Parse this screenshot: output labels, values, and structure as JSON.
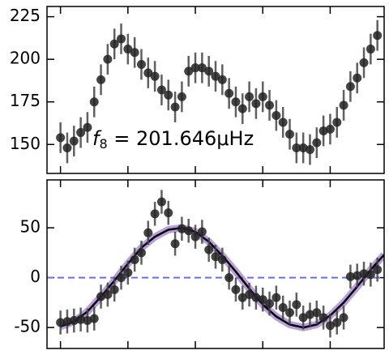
{
  "chart_data": [
    {
      "type": "scatter",
      "x": [
        0,
        1,
        2,
        3,
        4,
        5,
        6,
        7,
        8,
        9,
        10,
        11,
        12,
        13,
        14,
        15,
        16,
        17,
        18,
        19,
        20,
        21,
        22,
        23,
        24,
        25,
        26,
        27,
        28,
        29,
        30,
        31,
        32,
        33,
        34,
        35,
        36,
        37,
        38,
        39,
        40,
        41,
        42,
        43,
        44,
        45,
        46,
        47
      ],
      "values": [
        154,
        148,
        152,
        157,
        160,
        175,
        188,
        200,
        209,
        212,
        206,
        204,
        197,
        192,
        190,
        182,
        179,
        172,
        178,
        193,
        195,
        195,
        193,
        190,
        188,
        180,
        175,
        171,
        178,
        174,
        178,
        173,
        167,
        163,
        156,
        148,
        148,
        147,
        151,
        158,
        159,
        163,
        173,
        184,
        189,
        198,
        206,
        214
      ],
      "yerr": 9,
      "color": "#222222",
      "xlim": [
        -2,
        48
      ],
      "ylim": [
        133,
        231
      ],
      "xticks": [
        0,
        10,
        20,
        30,
        40
      ],
      "yticks": [
        150,
        175,
        200,
        225
      ],
      "annotation": {
        "symbol": "f",
        "subscript": "8",
        "text": " = 201.646μHz"
      }
    },
    {
      "type": "scatter",
      "x": [
        0,
        1,
        2,
        3,
        4,
        5,
        6,
        7,
        8,
        9,
        10,
        11,
        12,
        13,
        14,
        15,
        16,
        17,
        18,
        19,
        20,
        21,
        22,
        23,
        24,
        25,
        26,
        27,
        28,
        29,
        30,
        31,
        32,
        33,
        34,
        35,
        36,
        37,
        38,
        39,
        40,
        41,
        42,
        43,
        44,
        45,
        46,
        47
      ],
      "values": [
        -45,
        -44,
        -43,
        -42,
        -43,
        -41,
        -19,
        -17,
        -12,
        0,
        5,
        18,
        25,
        45,
        64,
        76,
        65,
        34,
        49,
        47,
        41,
        46,
        28,
        21,
        18,
        0,
        -12,
        -20,
        -17,
        -20,
        -22,
        -26,
        -20,
        -30,
        -35,
        -27,
        -40,
        -37,
        -35,
        -40,
        -48,
        -45,
        -40,
        1,
        2,
        4,
        3,
        8
      ],
      "yerr": 12,
      "color": "#222222",
      "fit": {
        "x": [
          0,
          2,
          4,
          6,
          8,
          10,
          12,
          14,
          16,
          18,
          20,
          22,
          24,
          26,
          28,
          30,
          32,
          34,
          36,
          38,
          40,
          42,
          44,
          46,
          48
        ],
        "values": [
          -49,
          -44,
          -34,
          -19,
          -3,
          14,
          30,
          41,
          48,
          50,
          46,
          36,
          22,
          6,
          -11,
          -27,
          -39,
          -47,
          -50,
          -47,
          -38,
          -25,
          -9,
          8,
          23
        ],
        "color": "#000000",
        "band_color": "#8e5fc4"
      },
      "hline": {
        "value": 0,
        "color": "#6b6bf0"
      },
      "xlim": [
        -2,
        48
      ],
      "ylim": [
        -71,
        98
      ],
      "xticks": [
        0,
        10,
        20,
        30,
        40
      ],
      "yticks": [
        -50,
        0,
        50
      ]
    }
  ]
}
